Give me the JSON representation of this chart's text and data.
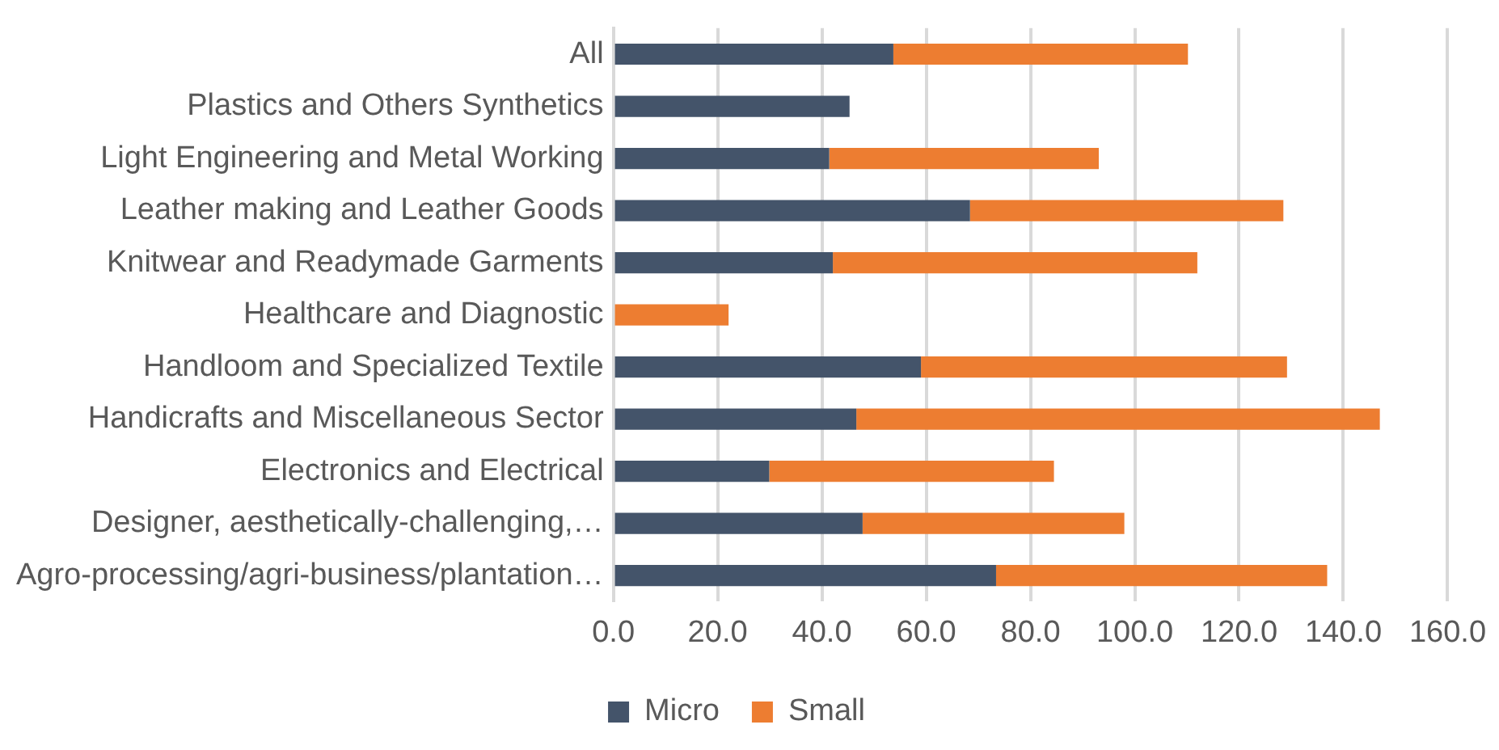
{
  "chart_data": {
    "type": "bar",
    "orientation": "horizontal",
    "stacked": true,
    "categories": [
      "All",
      "Plastics and Others Synthetics",
      "Light Engineering and Metal Working",
      "Leather making and Leather Goods",
      "Knitwear and Readymade Garments",
      "Healthcare and Diagnostic",
      "Handloom and Specialized Textile",
      "Handicrafts and Miscellaneous Sector",
      "Electronics and Electrical",
      "Designer, aesthetically-challenging,…",
      "Agro-processing/agri-business/plantation…"
    ],
    "series": [
      {
        "name": "Micro",
        "color": "#44546a",
        "values": [
          53.7,
          45.3,
          41.4,
          68.4,
          42.1,
          null,
          59.0,
          46.6,
          29.9,
          47.8,
          73.4
        ]
      },
      {
        "name": "Small",
        "color": "#ed7d31",
        "values": [
          56.5,
          null,
          51.7,
          60.1,
          69.9,
          22.1,
          70.2,
          100.4,
          54.6,
          50.2,
          63.5
        ]
      }
    ],
    "xlim": [
      0,
      160
    ],
    "xticks": [
      {
        "value": 0,
        "label": "0.0"
      },
      {
        "value": 20,
        "label": "20.0"
      },
      {
        "value": 40,
        "label": "40.0"
      },
      {
        "value": 60,
        "label": "60.0"
      },
      {
        "value": 80,
        "label": "80.0"
      },
      {
        "value": 100,
        "label": "100.0"
      },
      {
        "value": 120,
        "label": "120.0"
      },
      {
        "value": 140,
        "label": "140.0"
      },
      {
        "value": 160,
        "label": "160.0"
      }
    ],
    "grid": "x",
    "legend": "bottom"
  }
}
